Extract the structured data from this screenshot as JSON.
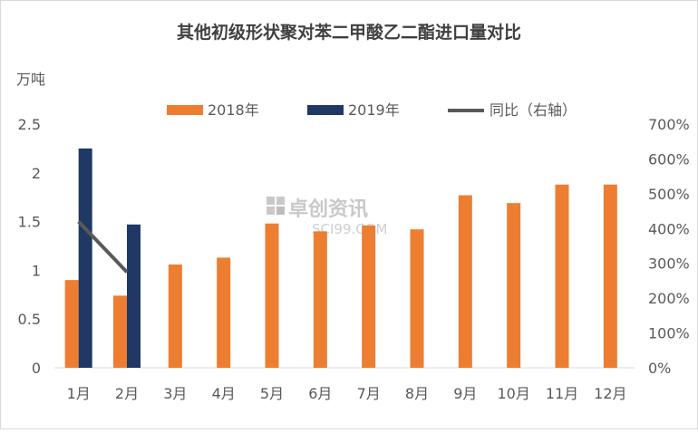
{
  "chart_data": {
    "type": "bar",
    "title": "其他初级形状聚对苯二甲酸乙二酯进口量对比",
    "ylabel": "万吨",
    "categories": [
      "1月",
      "2月",
      "3月",
      "4月",
      "5月",
      "6月",
      "7月",
      "8月",
      "9月",
      "10月",
      "11月",
      "12月"
    ],
    "series": [
      {
        "name": "2018年",
        "type": "bar",
        "color": "#ED7D31",
        "values": [
          0.9,
          0.74,
          1.06,
          1.13,
          1.48,
          1.4,
          1.46,
          1.42,
          1.77,
          1.69,
          1.88,
          1.88
        ]
      },
      {
        "name": "2019年",
        "type": "bar",
        "color": "#203864",
        "values": [
          2.25,
          1.47,
          null,
          null,
          null,
          null,
          null,
          null,
          null,
          null,
          null,
          null
        ]
      },
      {
        "name": "同比（右轴）",
        "type": "line",
        "axis": "right",
        "color": "#595959",
        "values": [
          4.2,
          2.75,
          null,
          null,
          null,
          null,
          null,
          null,
          null,
          null,
          null,
          null
        ]
      }
    ],
    "ylim": [
      0,
      2.5
    ],
    "y_ticks": [
      "0",
      "0.5",
      "1",
      "1.5",
      "2",
      "2.5"
    ],
    "y2lim": [
      0,
      7
    ],
    "y2_ticks": [
      "0%",
      "100%",
      "200%",
      "300%",
      "400%",
      "500%",
      "600%",
      "700%"
    ],
    "grid": false,
    "legend_position": "top"
  },
  "watermark": {
    "cn": "卓创资讯",
    "en": "SCI99.COM"
  }
}
